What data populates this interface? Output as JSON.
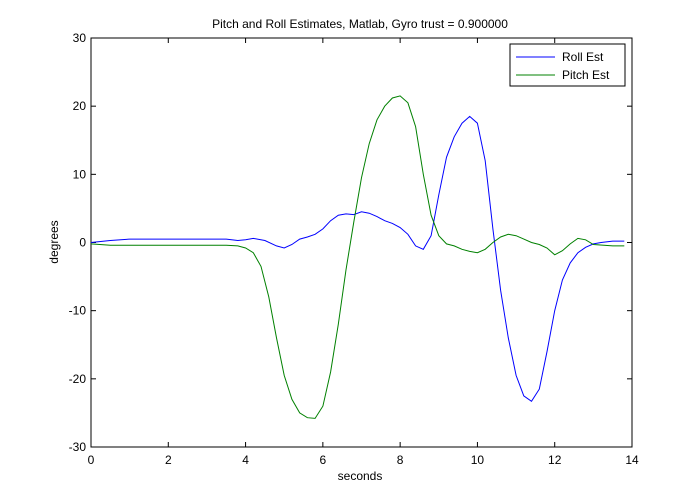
{
  "chart_data": {
    "type": "line",
    "title": "Pitch and Roll Estimates, Matlab, Gyro trust = 0.900000",
    "xlabel": "seconds",
    "ylabel": "degrees",
    "xlim": [
      0,
      14
    ],
    "ylim": [
      -30,
      30
    ],
    "xticks": [
      0,
      2,
      4,
      6,
      8,
      10,
      12,
      14
    ],
    "yticks": [
      -30,
      -20,
      -10,
      0,
      10,
      20,
      30
    ],
    "grid": false,
    "legend_position": "top-right",
    "series": [
      {
        "name": "Roll Est",
        "color": "#0000ff",
        "x": [
          0,
          0.5,
          1,
          2,
          3,
          3.5,
          3.8,
          4.0,
          4.2,
          4.5,
          4.8,
          5.0,
          5.2,
          5.4,
          5.6,
          5.8,
          6.0,
          6.2,
          6.4,
          6.6,
          6.8,
          7.0,
          7.2,
          7.4,
          7.6,
          7.8,
          8.0,
          8.2,
          8.4,
          8.6,
          8.8,
          9.0,
          9.2,
          9.4,
          9.6,
          9.8,
          10.0,
          10.2,
          10.4,
          10.6,
          10.8,
          11.0,
          11.2,
          11.4,
          11.6,
          11.8,
          12.0,
          12.2,
          12.4,
          12.6,
          12.8,
          13.0,
          13.2,
          13.5,
          13.8
        ],
        "y": [
          0,
          0.3,
          0.5,
          0.5,
          0.5,
          0.5,
          0.3,
          0.4,
          0.6,
          0.3,
          -0.5,
          -0.8,
          -0.3,
          0.5,
          0.8,
          1.2,
          2.0,
          3.2,
          4.0,
          4.2,
          4.1,
          4.5,
          4.3,
          3.8,
          3.2,
          2.8,
          2.2,
          1.2,
          -0.5,
          -1.0,
          1.0,
          7.0,
          12.5,
          15.5,
          17.5,
          18.5,
          17.5,
          12.0,
          2.0,
          -7.0,
          -14.0,
          -19.5,
          -22.5,
          -23.3,
          -21.5,
          -16.0,
          -10.0,
          -5.5,
          -3.0,
          -1.5,
          -0.7,
          -0.2,
          0.0,
          0.2,
          0.2
        ]
      },
      {
        "name": "Pitch Est",
        "color": "#008000",
        "x": [
          0,
          0.5,
          1,
          2,
          3,
          3.5,
          3.8,
          4.0,
          4.2,
          4.4,
          4.6,
          4.8,
          5.0,
          5.2,
          5.4,
          5.6,
          5.8,
          6.0,
          6.2,
          6.4,
          6.6,
          6.8,
          7.0,
          7.2,
          7.4,
          7.6,
          7.8,
          8.0,
          8.2,
          8.4,
          8.6,
          8.8,
          9.0,
          9.2,
          9.4,
          9.6,
          9.8,
          10.0,
          10.2,
          10.4,
          10.6,
          10.8,
          11.0,
          11.2,
          11.4,
          11.6,
          11.8,
          12.0,
          12.2,
          12.4,
          12.6,
          12.8,
          13.0,
          13.5,
          13.8
        ],
        "y": [
          -0.2,
          -0.4,
          -0.4,
          -0.4,
          -0.4,
          -0.4,
          -0.5,
          -0.8,
          -1.5,
          -3.5,
          -8.0,
          -14.0,
          -19.5,
          -23.0,
          -25.0,
          -25.7,
          -25.8,
          -24.0,
          -19.0,
          -12.0,
          -4.0,
          3.0,
          9.5,
          14.5,
          18.0,
          20.0,
          21.2,
          21.5,
          20.5,
          17.0,
          10.0,
          4.0,
          1.0,
          -0.2,
          -0.5,
          -1.0,
          -1.3,
          -1.5,
          -1.0,
          0.0,
          0.8,
          1.2,
          1.0,
          0.5,
          0.0,
          -0.3,
          -0.8,
          -1.8,
          -1.2,
          -0.2,
          0.6,
          0.4,
          -0.3,
          -0.5,
          -0.5
        ]
      }
    ]
  }
}
